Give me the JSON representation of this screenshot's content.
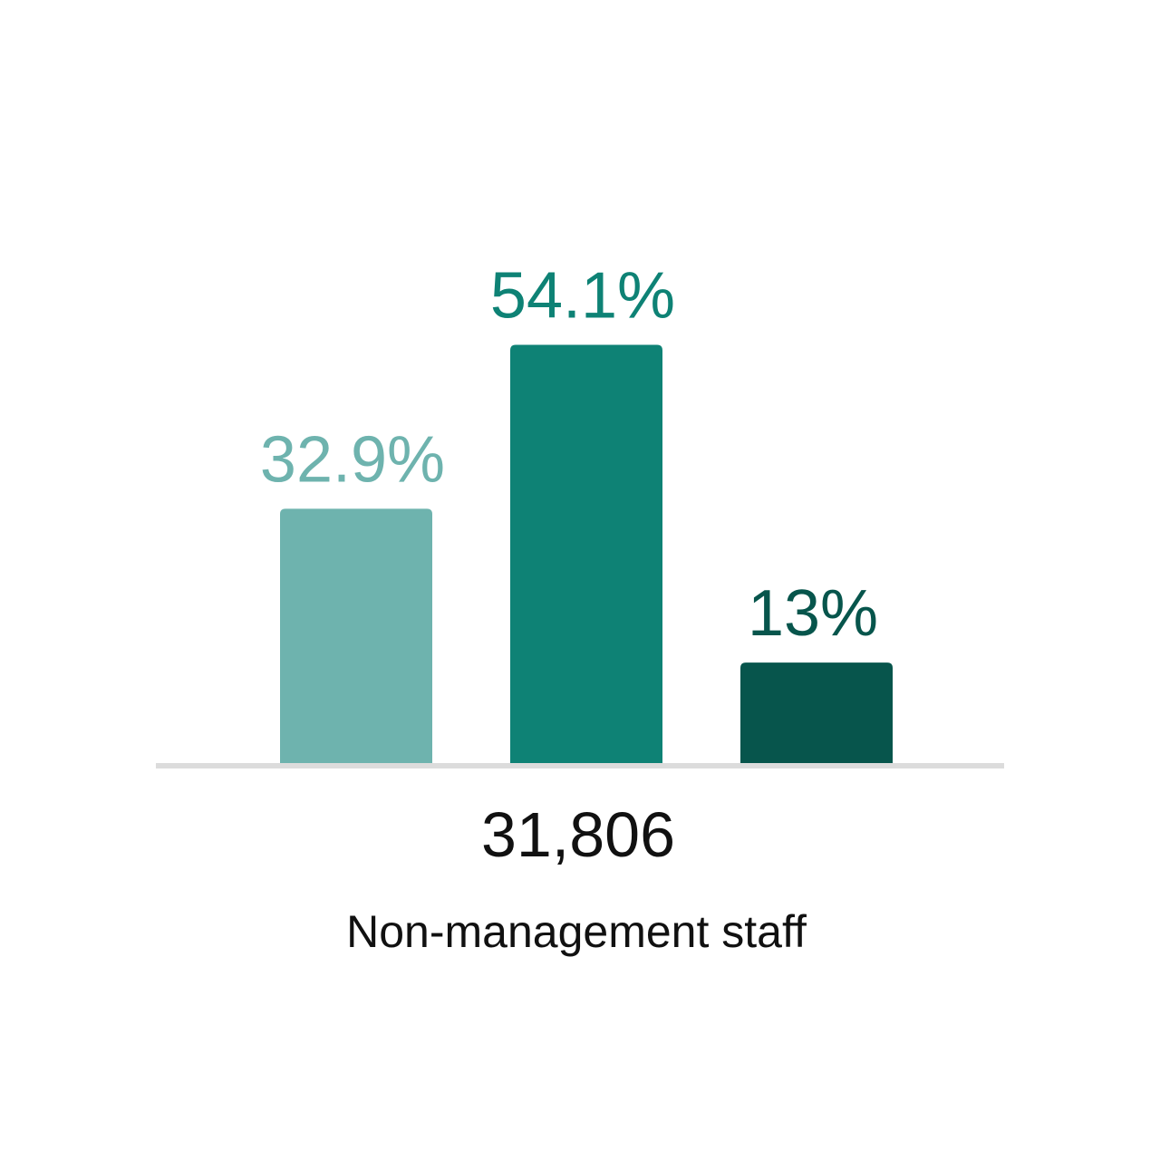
{
  "chart_data": {
    "type": "bar",
    "categories": [
      "",
      "",
      ""
    ],
    "values": [
      32.9,
      54.1,
      13
    ],
    "value_labels": [
      "32.9%",
      "54.1%",
      "13%"
    ],
    "colors": [
      "#6eb3ae",
      "#0e8275",
      "#07554c"
    ],
    "ylim": [
      0,
      60
    ],
    "grid": false,
    "total": "31,806",
    "xlabel": "Non-management staff"
  },
  "colors": {
    "baseline": "#dcdcdc",
    "text": "#111111"
  }
}
